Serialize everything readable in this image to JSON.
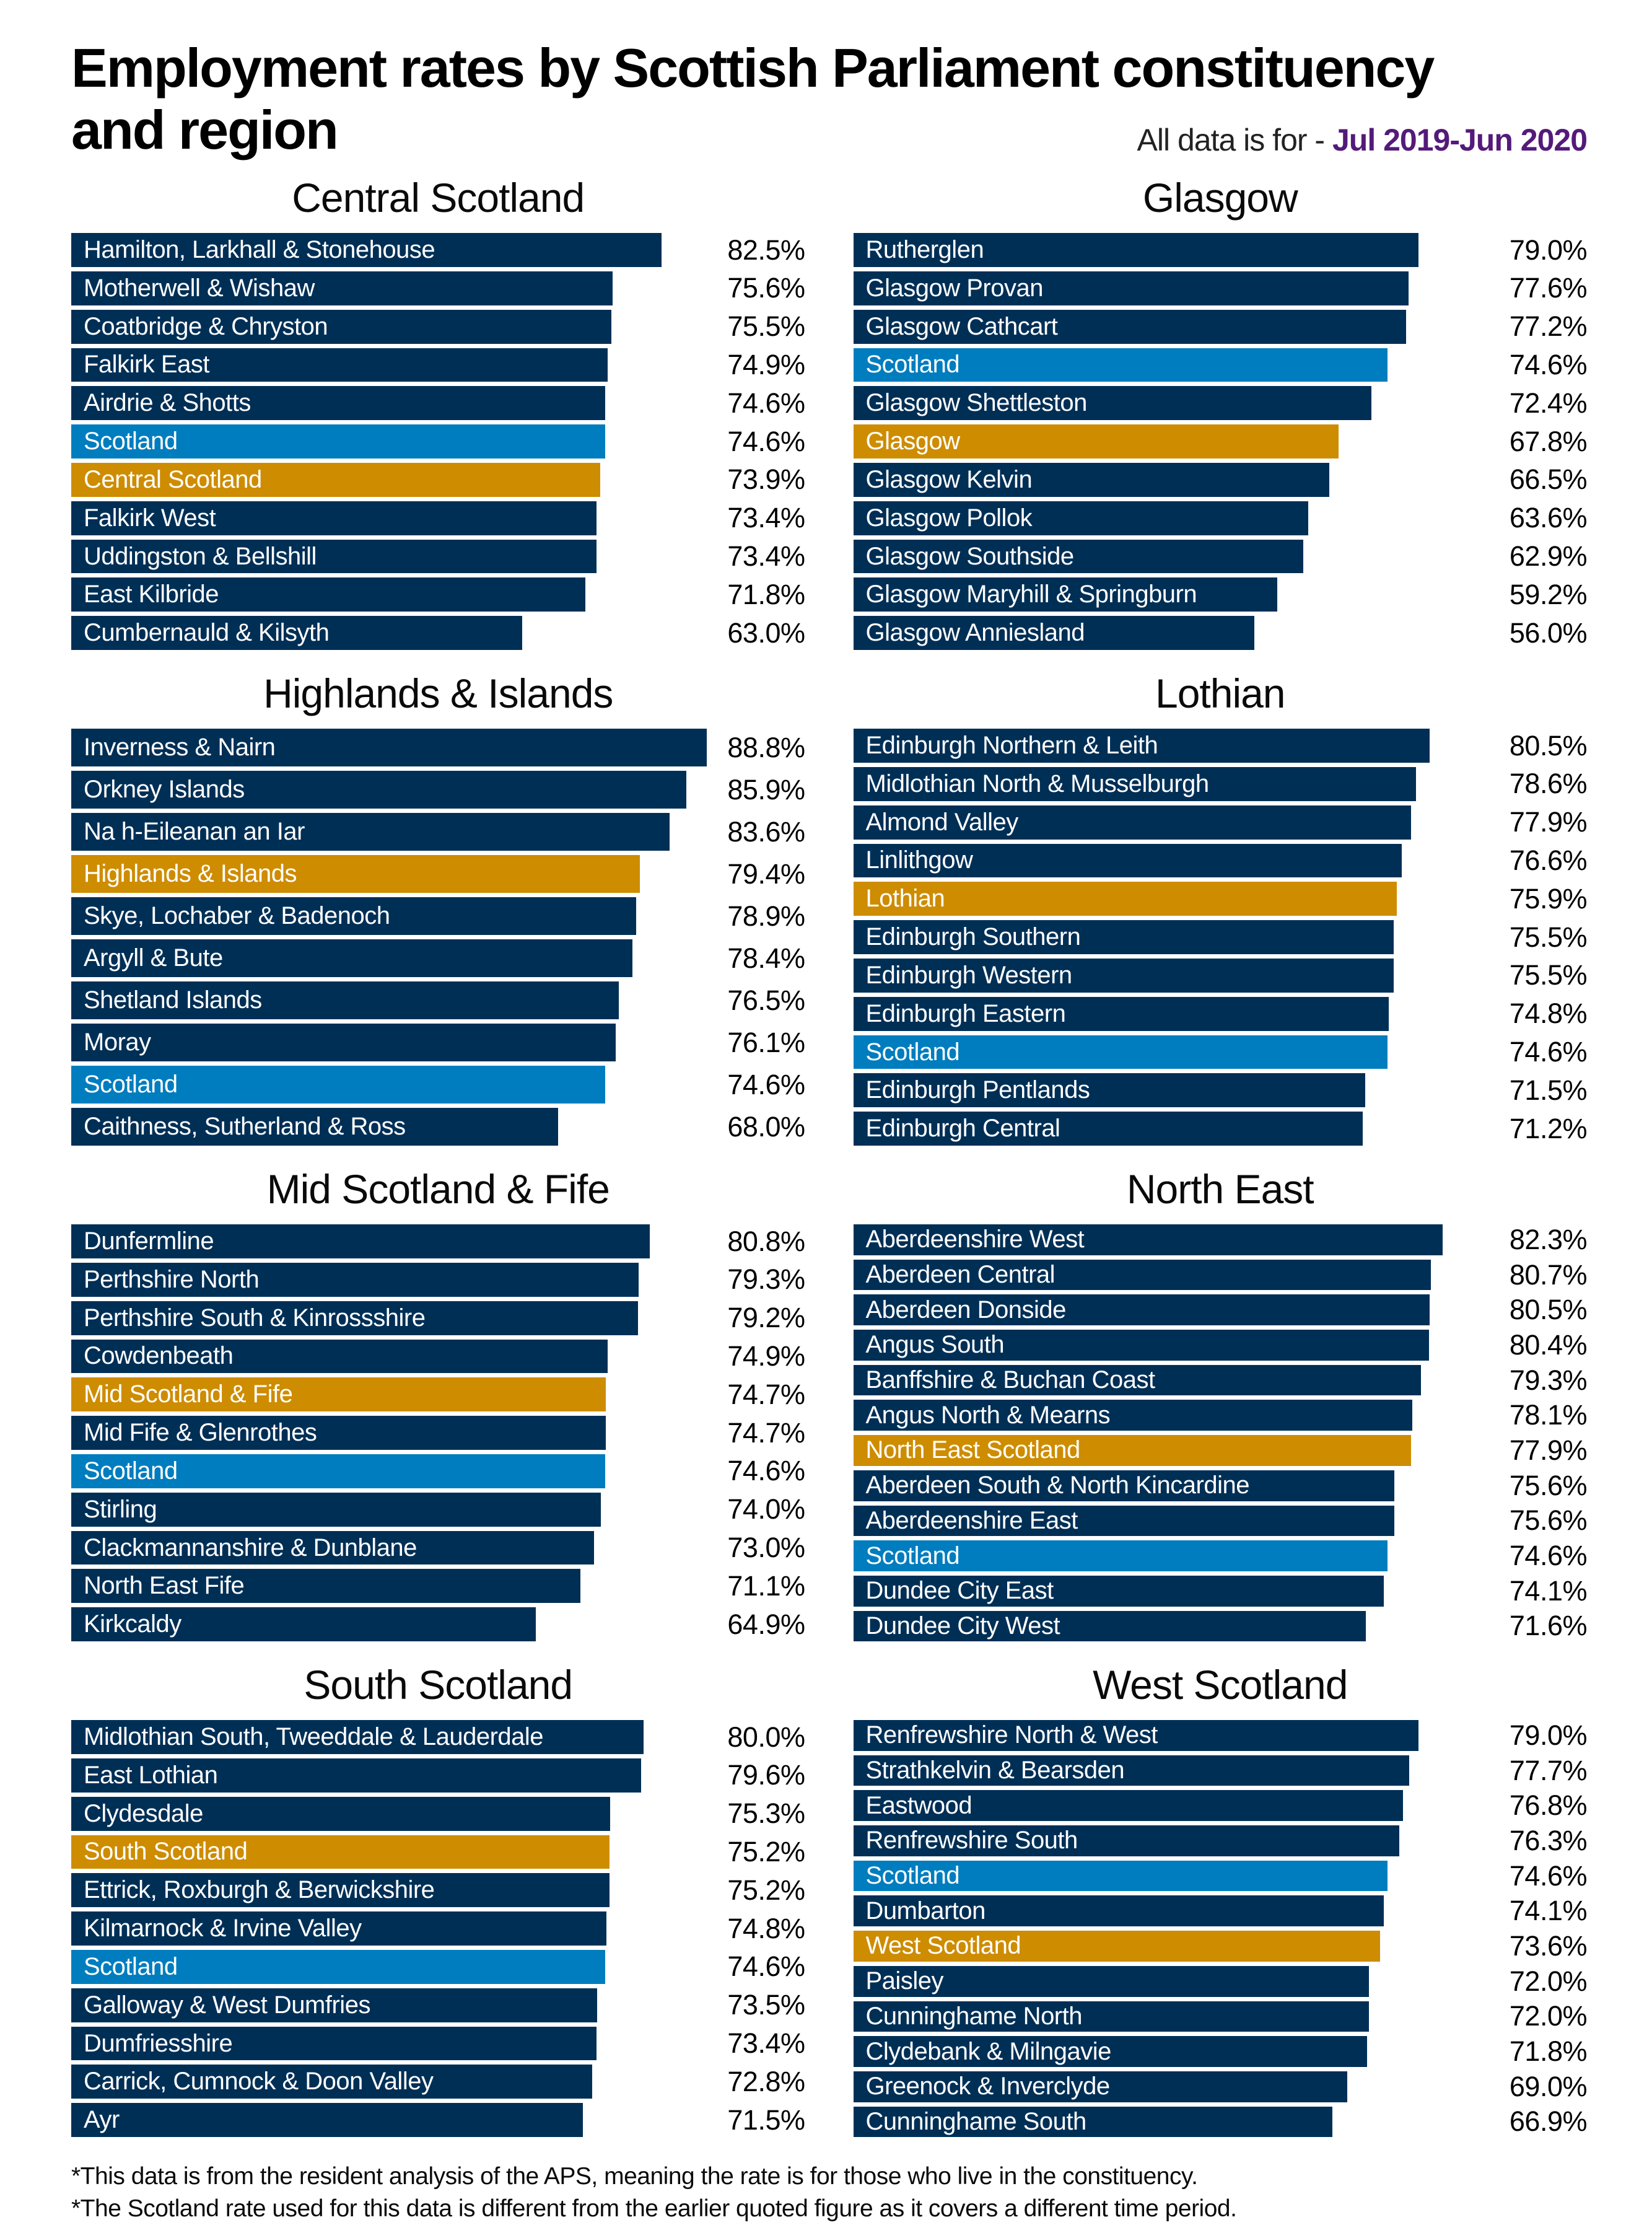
{
  "title": {
    "line1": "Employment rates by Scottish Parliament constituency",
    "line2": "and region"
  },
  "subtitle": {
    "prefix": "All data is for - ",
    "period": "Jul 2019-Jun 2020"
  },
  "footnotes": [
    "*This data is from the resident analysis of the APS, meaning the rate is for those who live in the constituency.",
    "*The Scotland rate used for this data is different from the earlier quoted figure as it covers a different time period."
  ],
  "colors": {
    "constituency": "#002f56",
    "scotland": "#007dbe",
    "region": "#ce8c00",
    "period_text": "#541a7a"
  },
  "legend_semantics": {
    "constituency": "navy bar - individual constituency",
    "scotland": "light blue bar - Scotland national rate",
    "region": "gold bar - parliamentary region average"
  },
  "chart_data": [
    {
      "type": "bar",
      "title": "Central Scotland",
      "unit": "%",
      "xlim": [
        0,
        90
      ],
      "grid": false,
      "rows": [
        {
          "label": "Hamilton, Larkhall & Stonehouse",
          "value": 82.5,
          "kind": "constituency"
        },
        {
          "label": "Motherwell & Wishaw",
          "value": 75.6,
          "kind": "constituency"
        },
        {
          "label": "Coatbridge & Chryston",
          "value": 75.5,
          "kind": "constituency"
        },
        {
          "label": "Falkirk East",
          "value": 74.9,
          "kind": "constituency"
        },
        {
          "label": "Airdrie & Shotts",
          "value": 74.6,
          "kind": "constituency"
        },
        {
          "label": "Scotland",
          "value": 74.6,
          "kind": "scotland"
        },
        {
          "label": "Central Scotland",
          "value": 73.9,
          "kind": "region"
        },
        {
          "label": "Falkirk West",
          "value": 73.4,
          "kind": "constituency"
        },
        {
          "label": "Uddingston & Bellshill",
          "value": 73.4,
          "kind": "constituency"
        },
        {
          "label": "East Kilbride",
          "value": 71.8,
          "kind": "constituency"
        },
        {
          "label": "Cumbernauld & Kilsyth",
          "value": 63.0,
          "kind": "constituency"
        }
      ]
    },
    {
      "type": "bar",
      "title": "Glasgow",
      "unit": "%",
      "xlim": [
        0,
        90
      ],
      "grid": false,
      "rows": [
        {
          "label": "Rutherglen",
          "value": 79.0,
          "kind": "constituency"
        },
        {
          "label": "Glasgow Provan",
          "value": 77.6,
          "kind": "constituency"
        },
        {
          "label": "Glasgow Cathcart",
          "value": 77.2,
          "kind": "constituency"
        },
        {
          "label": "Scotland",
          "value": 74.6,
          "kind": "scotland"
        },
        {
          "label": "Glasgow Shettleston",
          "value": 72.4,
          "kind": "constituency"
        },
        {
          "label": "Glasgow",
          "value": 67.8,
          "kind": "region"
        },
        {
          "label": "Glasgow Kelvin",
          "value": 66.5,
          "kind": "constituency"
        },
        {
          "label": "Glasgow Pollok",
          "value": 63.6,
          "kind": "constituency"
        },
        {
          "label": "Glasgow Southside",
          "value": 62.9,
          "kind": "constituency"
        },
        {
          "label": "Glasgow Maryhill & Springburn",
          "value": 59.2,
          "kind": "constituency"
        },
        {
          "label": "Glasgow Anniesland",
          "value": 56.0,
          "kind": "constituency"
        }
      ]
    },
    {
      "type": "bar",
      "title": "Highlands & Islands",
      "unit": "%",
      "xlim": [
        0,
        90
      ],
      "grid": false,
      "rows": [
        {
          "label": "Inverness & Nairn",
          "value": 88.8,
          "kind": "constituency"
        },
        {
          "label": "Orkney Islands",
          "value": 85.9,
          "kind": "constituency"
        },
        {
          "label": "Na h-Eileanan an Iar",
          "value": 83.6,
          "kind": "constituency"
        },
        {
          "label": "Highlands & Islands",
          "value": 79.4,
          "kind": "region"
        },
        {
          "label": "Skye, Lochaber & Badenoch",
          "value": 78.9,
          "kind": "constituency"
        },
        {
          "label": "Argyll & Bute",
          "value": 78.4,
          "kind": "constituency"
        },
        {
          "label": "Shetland Islands",
          "value": 76.5,
          "kind": "constituency"
        },
        {
          "label": "Moray",
          "value": 76.1,
          "kind": "constituency"
        },
        {
          "label": "Scotland",
          "value": 74.6,
          "kind": "scotland"
        },
        {
          "label": "Caithness, Sutherland & Ross",
          "value": 68.0,
          "kind": "constituency"
        }
      ]
    },
    {
      "type": "bar",
      "title": "Lothian",
      "unit": "%",
      "xlim": [
        0,
        90
      ],
      "grid": false,
      "rows": [
        {
          "label": "Edinburgh Northern & Leith",
          "value": 80.5,
          "kind": "constituency"
        },
        {
          "label": "Midlothian North & Musselburgh",
          "value": 78.6,
          "kind": "constituency"
        },
        {
          "label": "Almond Valley",
          "value": 77.9,
          "kind": "constituency"
        },
        {
          "label": "Linlithgow",
          "value": 76.6,
          "kind": "constituency"
        },
        {
          "label": "Lothian",
          "value": 75.9,
          "kind": "region"
        },
        {
          "label": "Edinburgh Southern",
          "value": 75.5,
          "kind": "constituency"
        },
        {
          "label": "Edinburgh Western",
          "value": 75.5,
          "kind": "constituency"
        },
        {
          "label": "Edinburgh Eastern",
          "value": 74.8,
          "kind": "constituency"
        },
        {
          "label": "Scotland",
          "value": 74.6,
          "kind": "scotland"
        },
        {
          "label": "Edinburgh Pentlands",
          "value": 71.5,
          "kind": "constituency"
        },
        {
          "label": "Edinburgh Central",
          "value": 71.2,
          "kind": "constituency"
        }
      ]
    },
    {
      "type": "bar",
      "title": "Mid Scotland & Fife",
      "unit": "%",
      "xlim": [
        0,
        90
      ],
      "grid": false,
      "rows": [
        {
          "label": "Dunfermline",
          "value": 80.8,
          "kind": "constituency"
        },
        {
          "label": "Perthshire North",
          "value": 79.3,
          "kind": "constituency"
        },
        {
          "label": "Perthshire South & Kinrossshire",
          "value": 79.2,
          "kind": "constituency"
        },
        {
          "label": "Cowdenbeath",
          "value": 74.9,
          "kind": "constituency"
        },
        {
          "label": "Mid Scotland & Fife",
          "value": 74.7,
          "kind": "region"
        },
        {
          "label": "Mid Fife & Glenrothes",
          "value": 74.7,
          "kind": "constituency"
        },
        {
          "label": "Scotland",
          "value": 74.6,
          "kind": "scotland"
        },
        {
          "label": "Stirling",
          "value": 74.0,
          "kind": "constituency"
        },
        {
          "label": "Clackmannanshire & Dunblane",
          "value": 73.0,
          "kind": "constituency"
        },
        {
          "label": "North East Fife",
          "value": 71.1,
          "kind": "constituency"
        },
        {
          "label": "Kirkcaldy",
          "value": 64.9,
          "kind": "constituency"
        }
      ]
    },
    {
      "type": "bar",
      "title": "North East",
      "unit": "%",
      "xlim": [
        0,
        90
      ],
      "grid": false,
      "rows": [
        {
          "label": "Aberdeenshire West",
          "value": 82.3,
          "kind": "constituency"
        },
        {
          "label": "Aberdeen Central",
          "value": 80.7,
          "kind": "constituency"
        },
        {
          "label": "Aberdeen Donside",
          "value": 80.5,
          "kind": "constituency"
        },
        {
          "label": "Angus South",
          "value": 80.4,
          "kind": "constituency"
        },
        {
          "label": "Banffshire & Buchan Coast",
          "value": 79.3,
          "kind": "constituency"
        },
        {
          "label": "Angus North & Mearns",
          "value": 78.1,
          "kind": "constituency"
        },
        {
          "label": "North East Scotland",
          "value": 77.9,
          "kind": "region"
        },
        {
          "label": "Aberdeen South & North Kincardine",
          "value": 75.6,
          "kind": "constituency"
        },
        {
          "label": "Aberdeenshire East",
          "value": 75.6,
          "kind": "constituency"
        },
        {
          "label": "Scotland",
          "value": 74.6,
          "kind": "scotland"
        },
        {
          "label": "Dundee City East",
          "value": 74.1,
          "kind": "constituency"
        },
        {
          "label": "Dundee City West",
          "value": 71.6,
          "kind": "constituency"
        }
      ]
    },
    {
      "type": "bar",
      "title": "South Scotland",
      "unit": "%",
      "xlim": [
        0,
        90
      ],
      "grid": false,
      "rows": [
        {
          "label": "Midlothian South, Tweeddale & Lauderdale",
          "value": 80.0,
          "kind": "constituency"
        },
        {
          "label": "East Lothian",
          "value": 79.6,
          "kind": "constituency"
        },
        {
          "label": "Clydesdale",
          "value": 75.3,
          "kind": "constituency"
        },
        {
          "label": "South Scotland",
          "value": 75.2,
          "kind": "region"
        },
        {
          "label": "Ettrick, Roxburgh & Berwickshire",
          "value": 75.2,
          "kind": "constituency"
        },
        {
          "label": "Kilmarnock & Irvine Valley",
          "value": 74.8,
          "kind": "constituency"
        },
        {
          "label": "Scotland",
          "value": 74.6,
          "kind": "scotland"
        },
        {
          "label": "Galloway & West Dumfries",
          "value": 73.5,
          "kind": "constituency"
        },
        {
          "label": "Dumfriesshire",
          "value": 73.4,
          "kind": "constituency"
        },
        {
          "label": "Carrick, Cumnock & Doon Valley",
          "value": 72.8,
          "kind": "constituency"
        },
        {
          "label": "Ayr",
          "value": 71.5,
          "kind": "constituency"
        }
      ]
    },
    {
      "type": "bar",
      "title": "West Scotland",
      "unit": "%",
      "xlim": [
        0,
        90
      ],
      "grid": false,
      "rows": [
        {
          "label": "Renfrewshire North & West",
          "value": 79.0,
          "kind": "constituency"
        },
        {
          "label": "Strathkelvin & Bearsden",
          "value": 77.7,
          "kind": "constituency"
        },
        {
          "label": "Eastwood",
          "value": 76.8,
          "kind": "constituency"
        },
        {
          "label": "Renfrewshire South",
          "value": 76.3,
          "kind": "constituency"
        },
        {
          "label": "Scotland",
          "value": 74.6,
          "kind": "scotland"
        },
        {
          "label": "Dumbarton",
          "value": 74.1,
          "kind": "constituency"
        },
        {
          "label": "West Scotland",
          "value": 73.6,
          "kind": "region"
        },
        {
          "label": "Paisley",
          "value": 72.0,
          "kind": "constituency"
        },
        {
          "label": "Cunninghame North",
          "value": 72.0,
          "kind": "constituency"
        },
        {
          "label": "Clydebank & Milngavie",
          "value": 71.8,
          "kind": "constituency"
        },
        {
          "label": "Greenock & Inverclyde",
          "value": 69.0,
          "kind": "constituency"
        },
        {
          "label": "Cunninghame South",
          "value": 66.9,
          "kind": "constituency"
        }
      ]
    }
  ]
}
